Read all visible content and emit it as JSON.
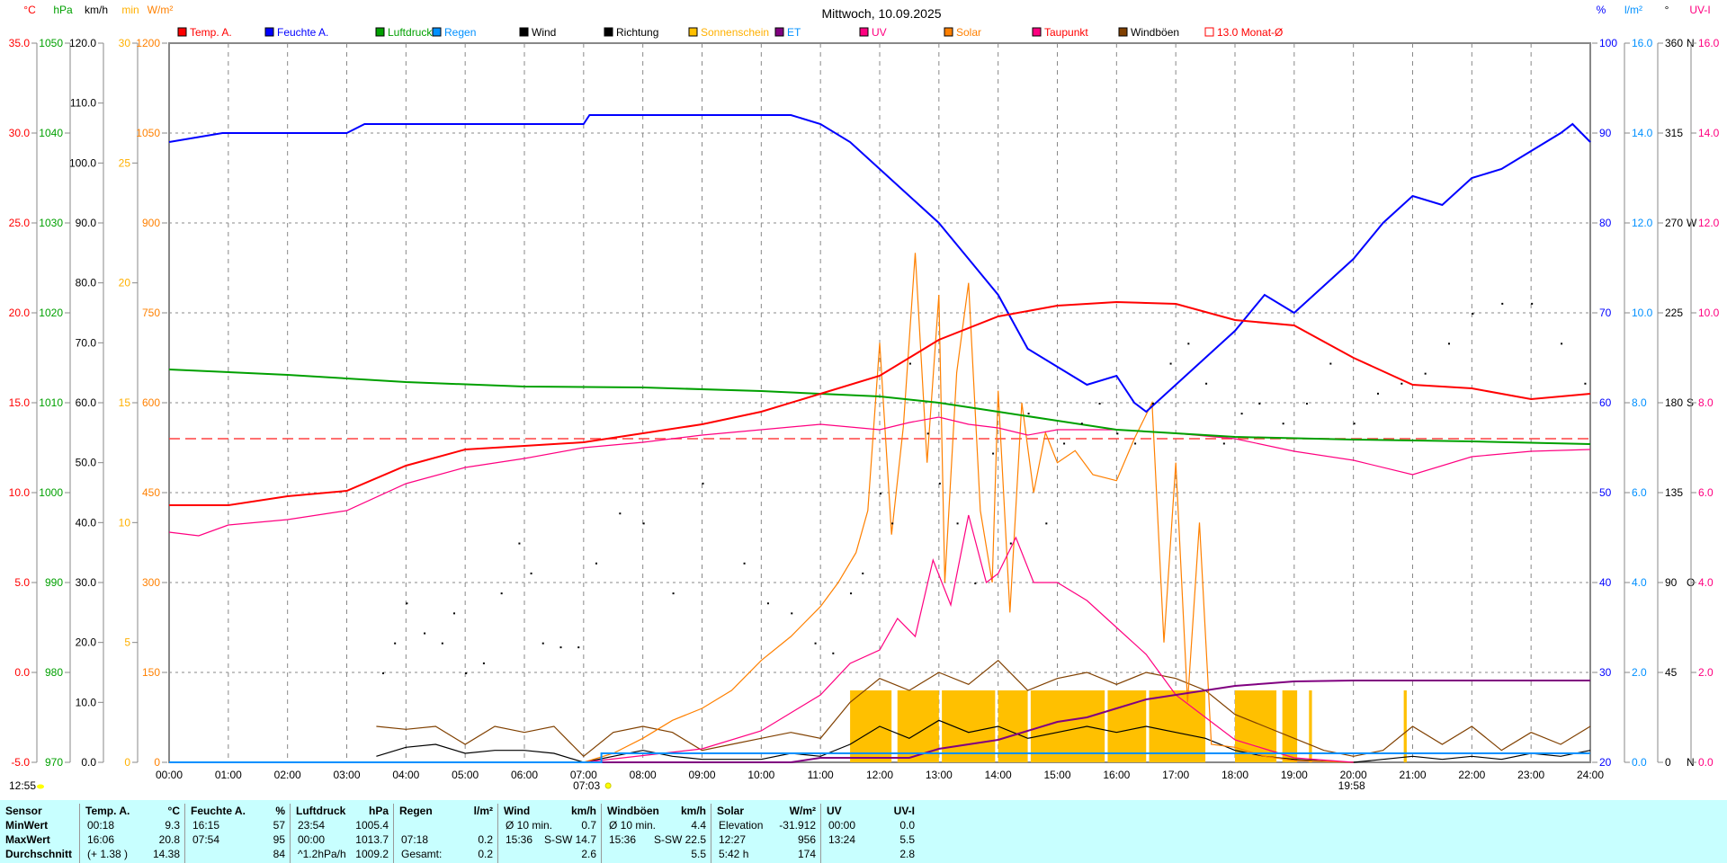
{
  "chart_data": {
    "type": "line",
    "title": "Mittwoch, 10.09.2025",
    "x_range_hours": [
      0,
      24
    ],
    "x_ticks": [
      "00:00",
      "01:00",
      "02:00",
      "03:00",
      "04:00",
      "05:00",
      "06:00",
      "07:00",
      "08:00",
      "09:00",
      "10:00",
      "11:00",
      "12:00",
      "13:00",
      "14:00",
      "15:00",
      "16:00",
      "17:00",
      "18:00",
      "19:00",
      "20:00",
      "21:00",
      "22:00",
      "23:00",
      "24:00"
    ],
    "axes": {
      "temp": {
        "unit": "°C",
        "color": "#ff0000",
        "range": [
          -5,
          35
        ],
        "ticks": [
          "-5.0",
          "0.0",
          "5.0",
          "10.0",
          "15.0",
          "20.0",
          "25.0",
          "30.0",
          "35.0"
        ]
      },
      "pressure": {
        "unit": "hPa",
        "color": "#00a000",
        "range": [
          970,
          1050
        ],
        "ticks": [
          "970",
          "980",
          "990",
          "1000",
          "1010",
          "1020",
          "1030",
          "1040",
          "1050"
        ]
      },
      "wind": {
        "unit": "km/h",
        "color": "#000000",
        "range": [
          0,
          120
        ],
        "ticks": [
          "0.0",
          "10.0",
          "20.0",
          "30.0",
          "40.0",
          "50.0",
          "60.0",
          "70.0",
          "80.0",
          "90.0",
          "100.0",
          "110.0",
          "120.0"
        ]
      },
      "sunshine": {
        "unit": "min",
        "color": "#ffb000",
        "range": [
          0,
          30
        ],
        "ticks": [
          "0",
          "5",
          "10",
          "15",
          "20",
          "25",
          "30"
        ]
      },
      "solar": {
        "unit": "W/m²",
        "color": "#ff8000",
        "range": [
          0,
          1200
        ],
        "ticks": [
          "0",
          "150",
          "300",
          "450",
          "600",
          "750",
          "900",
          "1050",
          "1200"
        ]
      },
      "humidity": {
        "unit": "%",
        "color": "#0000ff",
        "range": [
          20,
          100
        ],
        "ticks": [
          "20",
          "30",
          "40",
          "50",
          "60",
          "70",
          "80",
          "90",
          "100"
        ]
      },
      "rain": {
        "unit": "l/m²",
        "color": "#0090ff",
        "range": [
          0,
          16
        ],
        "ticks": [
          "0.0",
          "2.0",
          "4.0",
          "6.0",
          "8.0",
          "10.0",
          "12.0",
          "14.0",
          "16.0"
        ]
      },
      "direction": {
        "unit": "°",
        "color": "#000000",
        "range": [
          0,
          360
        ],
        "ticks": [
          "0",
          "45",
          "90",
          "135",
          "180",
          "225",
          "270",
          "315",
          "360"
        ],
        "compass": [
          "N",
          "",
          "O",
          "",
          "S",
          "",
          "W",
          "",
          "N"
        ]
      },
      "uv": {
        "unit": "UV-I",
        "color": "#ff0080",
        "range": [
          0,
          16
        ],
        "ticks": [
          "0.0",
          "2.0",
          "4.0",
          "6.0",
          "8.0",
          "10.0",
          "12.0",
          "14.0",
          "16.0"
        ]
      }
    },
    "legend": [
      {
        "label": "Temp. A.",
        "color": "#ff0000",
        "text_color": "#ff0000"
      },
      {
        "label": "Feuchte A.",
        "color": "#0000ff",
        "text_color": "#0000ff"
      },
      {
        "label": "Luftdruck",
        "color": "#00a000",
        "text_color": "#00a000"
      },
      {
        "label": "Regen",
        "color": "#0090ff",
        "text_color": "#0090ff"
      },
      {
        "label": "Wind",
        "color": "#000000",
        "text_color": "#000000"
      },
      {
        "label": "Richtung",
        "color": "#000000",
        "text_color": "#000000"
      },
      {
        "label": "Sonnenschein",
        "color": "#ffc000",
        "text_color": "#ffb000"
      },
      {
        "label": "ET",
        "color": "#800080",
        "text_color": "#0090ff"
      },
      {
        "label": "UV",
        "color": "#ff0080",
        "text_color": "#ff0080"
      },
      {
        "label": "Solar",
        "color": "#ff8000",
        "text_color": "#ff8000"
      },
      {
        "label": "Taupunkt",
        "color": "#ff0080",
        "text_color": "#ff0000"
      },
      {
        "label": "Windböen",
        "color": "#804000",
        "text_color": "#000000"
      },
      {
        "label": "13.0 Monat-Ø",
        "color": "#ffffff",
        "text_color": "#ff0000"
      }
    ],
    "monthly_avg_temp": 13.0,
    "series": [
      {
        "name": "Temp. A.",
        "axis": "temp",
        "color": "#ff0000",
        "x": [
          0,
          1,
          2,
          3,
          4,
          5,
          6,
          7,
          8,
          9,
          10,
          11,
          12,
          13,
          14,
          15,
          16,
          17,
          18,
          19,
          20,
          21,
          22,
          23,
          24
        ],
        "y": [
          9.3,
          9.3,
          9.8,
          10.1,
          11.5,
          12.4,
          12.6,
          12.8,
          13.3,
          13.8,
          14.5,
          15.5,
          16.5,
          18.5,
          19.8,
          20.4,
          20.6,
          20.5,
          19.6,
          19.3,
          17.5,
          16.0,
          15.8,
          15.2,
          15.5
        ]
      },
      {
        "name": "Feuchte A.",
        "axis": "humidity",
        "color": "#0000ff",
        "x": [
          0,
          0.9,
          3.0,
          3.3,
          3.5,
          7.0,
          7.1,
          10.5,
          11.0,
          11.5,
          12.0,
          12.5,
          13.0,
          13.5,
          14.0,
          14.5,
          15.0,
          15.5,
          16.0,
          16.3,
          16.5,
          17.0,
          17.5,
          18.0,
          18.5,
          19.0,
          19.5,
          20.0,
          20.5,
          21.0,
          21.5,
          22.0,
          22.5,
          23.0,
          23.5,
          23.7,
          24.0
        ],
        "y": [
          89,
          90,
          90,
          91,
          91,
          91,
          92,
          92,
          91,
          89,
          86,
          83,
          80,
          76,
          72,
          66,
          64,
          62,
          63,
          60,
          59,
          62,
          65,
          68,
          72,
          70,
          73,
          76,
          80,
          83,
          82,
          85,
          86,
          88,
          90,
          91,
          89
        ]
      },
      {
        "name": "Luftdruck",
        "axis": "pressure",
        "color": "#00a000",
        "x": [
          0,
          2,
          4,
          6,
          8,
          10,
          12,
          13,
          14,
          15,
          16,
          17,
          18,
          20,
          22,
          24
        ],
        "y": [
          1013.7,
          1013.1,
          1012.3,
          1011.8,
          1011.7,
          1011.3,
          1010.7,
          1010.0,
          1009.0,
          1008.0,
          1007.0,
          1006.6,
          1006.2,
          1005.9,
          1005.7,
          1005.4
        ]
      },
      {
        "name": "Taupunkt",
        "axis": "temp",
        "color": "#ff0080",
        "x": [
          0,
          0.5,
          1,
          2,
          3,
          4,
          5,
          6,
          7,
          8,
          9,
          10,
          11,
          12,
          12.5,
          13,
          13.5,
          14,
          14.5,
          15,
          16,
          17,
          18,
          19,
          20,
          21,
          22,
          23,
          24
        ],
        "y": [
          7.8,
          7.6,
          8.2,
          8.5,
          9.0,
          10.5,
          11.4,
          11.9,
          12.5,
          12.8,
          13.2,
          13.5,
          13.8,
          13.5,
          13.9,
          14.2,
          13.8,
          13.6,
          13.2,
          13.5,
          13.5,
          13.3,
          13.0,
          12.3,
          11.8,
          11.0,
          12.0,
          12.3,
          12.4
        ]
      },
      {
        "name": "Solar",
        "axis": "solar",
        "color": "#ff8000",
        "x": [
          7,
          7.5,
          8,
          8.5,
          9,
          9.5,
          10,
          10.5,
          11,
          11.3,
          11.6,
          11.8,
          12,
          12.2,
          12.4,
          12.6,
          12.8,
          13,
          13.1,
          13.3,
          13.5,
          13.7,
          13.9,
          14,
          14.2,
          14.4,
          14.6,
          14.8,
          15,
          15.3,
          15.6,
          16,
          16.3,
          16.6,
          16.8,
          17,
          17.2,
          17.4,
          17.6,
          18,
          18.5,
          19,
          20
        ],
        "y": [
          0,
          15,
          40,
          70,
          90,
          120,
          170,
          210,
          260,
          300,
          350,
          420,
          700,
          380,
          560,
          850,
          500,
          780,
          300,
          650,
          800,
          420,
          300,
          620,
          250,
          600,
          450,
          550,
          500,
          520,
          480,
          470,
          540,
          600,
          200,
          500,
          100,
          400,
          30,
          25,
          10,
          3,
          0
        ]
      },
      {
        "name": "UV",
        "axis": "uv",
        "color": "#ff0080",
        "x": [
          7,
          9,
          10,
          11,
          11.5,
          12,
          12.3,
          12.6,
          12.9,
          13.2,
          13.5,
          13.8,
          14,
          14.3,
          14.6,
          15,
          15.5,
          16,
          16.5,
          17,
          17.5,
          18,
          18.5,
          19,
          20
        ],
        "y": [
          0,
          0.3,
          0.7,
          1.5,
          2.2,
          2.5,
          3.2,
          2.8,
          4.5,
          3.5,
          5.5,
          4.0,
          4.2,
          5.0,
          4.0,
          4.0,
          3.6,
          3.0,
          2.4,
          1.5,
          1.0,
          0.5,
          0.3,
          0.1,
          0
        ]
      },
      {
        "name": "Wind",
        "axis": "wind",
        "color": "#000000",
        "x": [
          3.5,
          4,
          4.5,
          5,
          5.5,
          6,
          6.5,
          7,
          7.5,
          8,
          8.5,
          9,
          9.5,
          10,
          10.5,
          11,
          11.5,
          12,
          12.5,
          13,
          13.5,
          14,
          14.5,
          15,
          15.5,
          16,
          16.5,
          17,
          17.5,
          18,
          18.5,
          19,
          19.5,
          20,
          20.5,
          21,
          21.5,
          22,
          22.5,
          23,
          23.5,
          24
        ],
        "y": [
          1,
          2.5,
          3,
          1.5,
          2,
          2,
          1.5,
          0,
          1,
          2,
          1,
          0.5,
          0.5,
          0.5,
          1.5,
          1,
          3,
          6,
          4,
          7,
          5,
          6,
          4,
          5,
          6,
          5,
          6,
          5,
          4,
          2,
          1,
          0.5,
          0.2,
          0,
          0.5,
          1,
          0.5,
          1,
          0.5,
          1.5,
          1,
          2
        ]
      },
      {
        "name": "Windböen",
        "axis": "wind",
        "color": "#804000",
        "x": [
          3.5,
          4,
          4.5,
          5,
          5.5,
          6,
          6.5,
          7,
          7.5,
          8,
          8.5,
          9,
          9.5,
          10,
          10.5,
          11,
          11.5,
          12,
          12.5,
          13,
          13.5,
          14,
          14.5,
          15,
          15.5,
          16,
          16.5,
          17,
          17.5,
          18,
          18.5,
          19,
          19.5,
          20,
          20.5,
          21,
          21.5,
          22,
          22.5,
          23,
          23.5,
          24
        ],
        "y": [
          6,
          5.5,
          6,
          3,
          6,
          5,
          6,
          1,
          5,
          6,
          5,
          2,
          3,
          4,
          5,
          4,
          10,
          14,
          12,
          15,
          13,
          17,
          12,
          14,
          15,
          13,
          15,
          14,
          12,
          8,
          6,
          4,
          2,
          1,
          2,
          6,
          3,
          6,
          2,
          5,
          3,
          6
        ]
      },
      {
        "name": "ET",
        "axis": "rain",
        "color": "#800080",
        "x": [
          0,
          10.5,
          11,
          12.5,
          13,
          14,
          14.5,
          15,
          15.5,
          16,
          16.5,
          17,
          17.5,
          18,
          18.5,
          19,
          20,
          24
        ],
        "y": [
          0,
          0,
          0.1,
          0.1,
          0.3,
          0.5,
          0.7,
          0.9,
          1.0,
          1.2,
          1.4,
          1.5,
          1.6,
          1.7,
          1.75,
          1.8,
          1.82,
          1.82
        ]
      },
      {
        "name": "Regen",
        "axis": "rain",
        "color": "#0090ff",
        "x": [
          0,
          7.3,
          7.3,
          24
        ],
        "y": [
          0,
          0,
          0.2,
          0.2
        ]
      }
    ],
    "sunshine_bars": {
      "axis": "sunshine",
      "color": "#ffc000",
      "ranges": [
        [
          11.5,
          12.2
        ],
        [
          12.3,
          13.0
        ],
        [
          13.05,
          13.95
        ],
        [
          14.0,
          14.5
        ],
        [
          14.55,
          15.8
        ],
        [
          15.85,
          16.5
        ],
        [
          16.55,
          17.5
        ],
        [
          18.0,
          18.7
        ],
        [
          18.8,
          19.05
        ],
        [
          19.25,
          19.3
        ],
        [
          20.85,
          20.9
        ]
      ],
      "value": 3
    },
    "direction_points": {
      "axis": "direction",
      "x": [
        3.6,
        3.8,
        4,
        4.3,
        4.6,
        4.8,
        5,
        5.3,
        5.6,
        5.9,
        6.1,
        6.3,
        6.6,
        6.9,
        7.2,
        7.6,
        8,
        8.5,
        9,
        9.7,
        10.1,
        10.5,
        10.9,
        11.2,
        11.5,
        11.7,
        12,
        12.2,
        12.5,
        12.8,
        13,
        13.3,
        13.6,
        13.9,
        14.2,
        14.5,
        14.8,
        15.1,
        15.4,
        15.7,
        16,
        16.3,
        16.6,
        16.9,
        17.2,
        17.5,
        17.8,
        18.1,
        18.4,
        18.8,
        19.2,
        19.6,
        20,
        20.4,
        20.8,
        21.2,
        21.6,
        22,
        22.5,
        23,
        23.5,
        23.9
      ],
      "y": [
        45,
        60,
        80,
        65,
        60,
        75,
        45,
        50,
        85,
        110,
        95,
        60,
        58,
        58,
        100,
        125,
        120,
        85,
        140,
        100,
        80,
        75,
        60,
        55,
        85,
        95,
        135,
        120,
        200,
        165,
        140,
        120,
        90,
        155,
        110,
        175,
        120,
        160,
        170,
        180,
        165,
        160,
        180,
        200,
        210,
        190,
        160,
        175,
        180,
        170,
        180,
        200,
        170,
        185,
        190,
        195,
        210,
        225,
        230,
        230,
        210,
        190
      ]
    },
    "annotations": {
      "moon": "12:55",
      "sunrise": "07:03",
      "sunset": "19:58"
    }
  },
  "table": {
    "columns": [
      {
        "head": "Sensor",
        "unit": "",
        "rows": [
          [
            "MinWert",
            ""
          ],
          [
            "MaxWert",
            ""
          ],
          [
            "Durchschnitt",
            ""
          ]
        ]
      },
      {
        "head": "Temp. A.",
        "unit": "°C",
        "rows": [
          [
            "00:18",
            "9.3"
          ],
          [
            "16:06",
            "20.8"
          ],
          [
            "(+ 1.38 )",
            "14.38"
          ]
        ]
      },
      {
        "head": "Feuchte A.",
        "unit": "%",
        "rows": [
          [
            "16:15",
            "57"
          ],
          [
            "07:54",
            "95"
          ],
          [
            "",
            "84"
          ]
        ]
      },
      {
        "head": "Luftdruck",
        "unit": "hPa",
        "rows": [
          [
            "23:54",
            "1005.4"
          ],
          [
            "00:00",
            "1013.7"
          ],
          [
            "^1.2hPa/h",
            "1009.2"
          ]
        ]
      },
      {
        "head": "Regen",
        "unit": "l/m²",
        "rows": [
          [
            "",
            ""
          ],
          [
            "07:18",
            "0.2"
          ],
          [
            "Gesamt:",
            "0.2"
          ]
        ]
      },
      {
        "head": "Wind",
        "unit": "km/h",
        "rows": [
          [
            "Ø 10 min.",
            "0.7"
          ],
          [
            "15:36",
            "S-SW 14.7"
          ],
          [
            "",
            "2.6"
          ]
        ]
      },
      {
        "head": "Windböen",
        "unit": "km/h",
        "rows": [
          [
            "Ø 10 min.",
            "4.4"
          ],
          [
            "15:36",
            "S-SW 22.5"
          ],
          [
            "",
            "5.5"
          ]
        ]
      },
      {
        "head": "Solar",
        "unit": "W/m²",
        "rows": [
          [
            "Elevation",
            "-31.912"
          ],
          [
            "12:27",
            "956"
          ],
          [
            "5:42 h",
            "174"
          ]
        ]
      },
      {
        "head": "UV",
        "unit": "UV-I",
        "rows": [
          [
            "00:00",
            "0.0"
          ],
          [
            "13:24",
            "5.5"
          ],
          [
            "",
            "2.8"
          ]
        ]
      }
    ]
  }
}
